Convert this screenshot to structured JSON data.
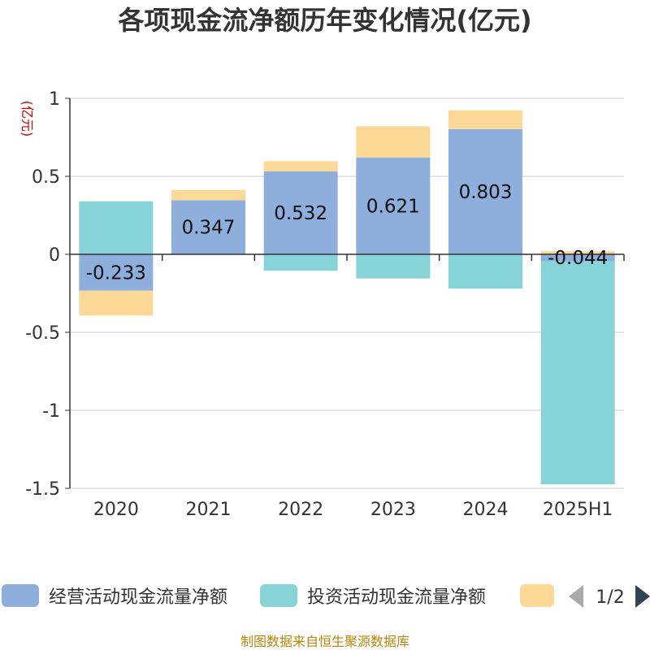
{
  "chart_data": {
    "type": "bar",
    "stacked": true,
    "title": "各项现金流净额历年变化情况(亿元)",
    "ylabel": "(亿元)",
    "categories": [
      "2020",
      "2021",
      "2022",
      "2023",
      "2024",
      "2025H1"
    ],
    "ylim": [
      -1.5,
      1
    ],
    "yticks": [
      1,
      0.5,
      0,
      -0.5,
      -1,
      -1.5
    ],
    "ytick_labels": [
      "1",
      "0.5",
      "0",
      "-0.5",
      "-1",
      "-1.5"
    ],
    "grid": true,
    "legend_position": "bottom",
    "series": [
      {
        "name": "经营活动现金流量净额",
        "color": "#8eaedb",
        "values": [
          -0.233,
          0.347,
          0.532,
          0.621,
          0.803,
          -0.044
        ],
        "labels": [
          "-0.233",
          "0.347",
          "0.532",
          "0.621",
          "0.803",
          "-0.044"
        ]
      },
      {
        "name": "投资活动现金流量净额",
        "color": "#86d4d8",
        "values": [
          0.34,
          0.0,
          -0.105,
          -0.155,
          -0.22,
          -1.43
        ]
      },
      {
        "name": "",
        "color": "#fdd998",
        "values": [
          -0.16,
          0.065,
          0.065,
          0.2,
          0.12,
          0.02
        ]
      }
    ]
  },
  "legend": {
    "page": "1/2"
  },
  "source": "制图数据来自恒生聚源数据库"
}
